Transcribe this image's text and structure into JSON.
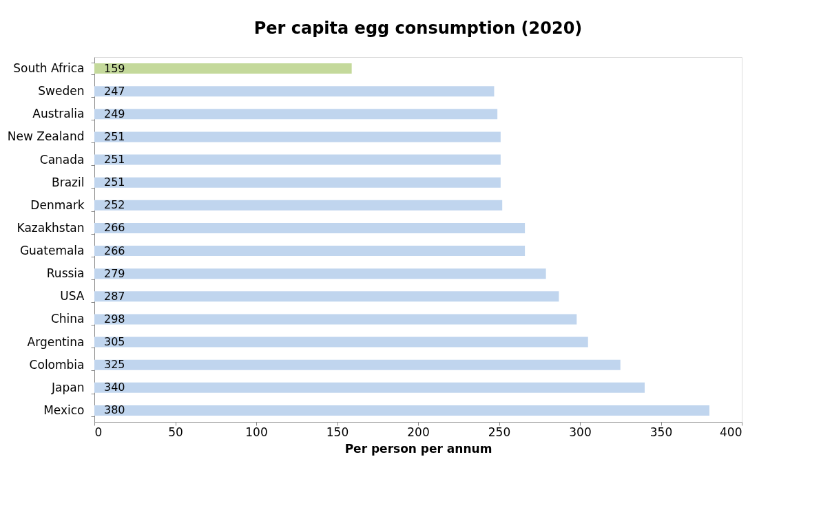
{
  "chart_data": {
    "type": "bar",
    "orientation": "horizontal",
    "title": "Per capita egg consumption (2020)",
    "xlabel": "Per person per annum",
    "categories": [
      "South Africa",
      "Sweden",
      "Australia",
      "New Zealand",
      "Canada",
      "Brazil",
      "Denmark",
      "Kazakhstan",
      "Guatemala",
      "Russia",
      "USA",
      "China",
      "Argentina",
      "Colombia",
      "Japan",
      "Mexico"
    ],
    "values": [
      159,
      247,
      249,
      251,
      251,
      251,
      252,
      266,
      266,
      279,
      287,
      298,
      305,
      325,
      340,
      380
    ],
    "colors": [
      "#c4d99b",
      "#c0d5ee",
      "#c0d5ee",
      "#c0d5ee",
      "#c0d5ee",
      "#c0d5ee",
      "#c0d5ee",
      "#c0d5ee",
      "#c0d5ee",
      "#c0d5ee",
      "#c0d5ee",
      "#c0d5ee",
      "#c0d5ee",
      "#c0d5ee",
      "#c0d5ee",
      "#c0d5ee"
    ],
    "xlim": [
      0,
      400
    ],
    "xticks": [
      0,
      50,
      100,
      150,
      200,
      250,
      300,
      350,
      400
    ],
    "grid": false,
    "data_labels": true
  }
}
